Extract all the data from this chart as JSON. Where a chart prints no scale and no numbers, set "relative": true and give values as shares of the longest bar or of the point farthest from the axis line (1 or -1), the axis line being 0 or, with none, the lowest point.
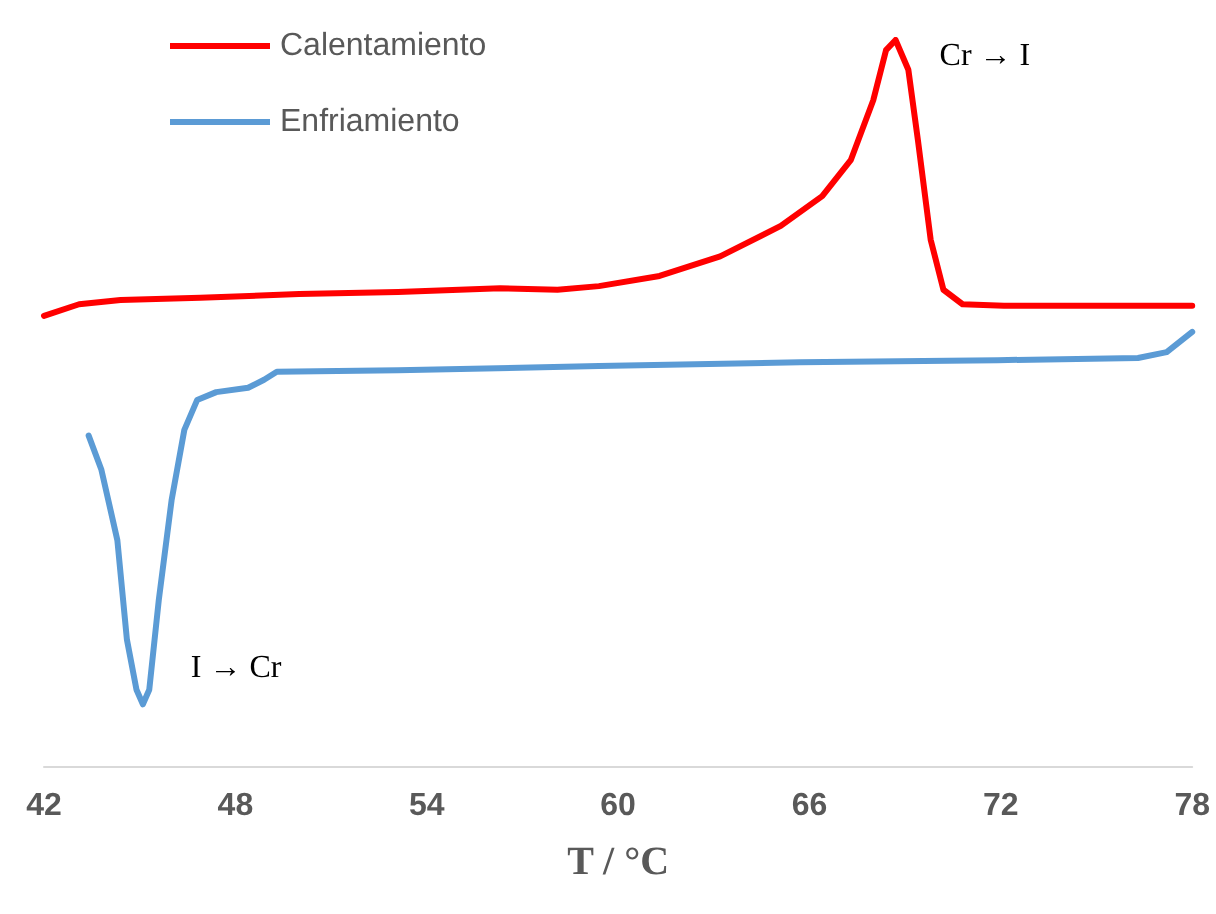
{
  "chart_data": {
    "type": "line",
    "xlabel": "T / °C",
    "xlim": [
      42,
      78
    ],
    "xticks": [
      42,
      48,
      54,
      60,
      66,
      72,
      78
    ],
    "relative": true,
    "legend": "top left",
    "marker": "none",
    "annotations": [
      {
        "text": "Cr → I",
        "x": 68.7,
        "y": 1
      },
      {
        "text": "I → Cr",
        "x": 45.1,
        "y": 0.085
      }
    ],
    "series": [
      {
        "name": "Calentamiento",
        "color": "#ff0000",
        "x": [
          42,
          43.1,
          44.4,
          46.9,
          50.0,
          53.1,
          56.3,
          58.1,
          59.4,
          61.3,
          63.2,
          65.1,
          66.4,
          67.3,
          68.0,
          68.4,
          68.7,
          69.1,
          69.4,
          69.8,
          70.2,
          70.8,
          72.1,
          75.2,
          78
        ],
        "values": [
          0.62,
          0.636,
          0.642,
          0.645,
          0.65,
          0.653,
          0.658,
          0.656,
          0.661,
          0.675,
          0.702,
          0.744,
          0.785,
          0.835,
          0.917,
          0.986,
          1,
          0.959,
          0.862,
          0.725,
          0.656,
          0.636,
          0.634,
          0.634,
          0.634
        ]
      },
      {
        "name": "Enfriamiento",
        "color": "#5b9bd5",
        "x": [
          43.4,
          43.8,
          44.3,
          44.6,
          44.9,
          45.1,
          45.3,
          45.6,
          46.0,
          46.4,
          46.8,
          47.4,
          48.4,
          48.9,
          49.3,
          53.1,
          59.4,
          65.7,
          71.9,
          76.3,
          77.2,
          78
        ],
        "values": [
          0.455,
          0.408,
          0.311,
          0.174,
          0.105,
          0.085,
          0.105,
          0.229,
          0.366,
          0.463,
          0.504,
          0.515,
          0.521,
          0.532,
          0.543,
          0.545,
          0.551,
          0.556,
          0.559,
          0.562,
          0.57,
          0.598
        ]
      }
    ]
  }
}
